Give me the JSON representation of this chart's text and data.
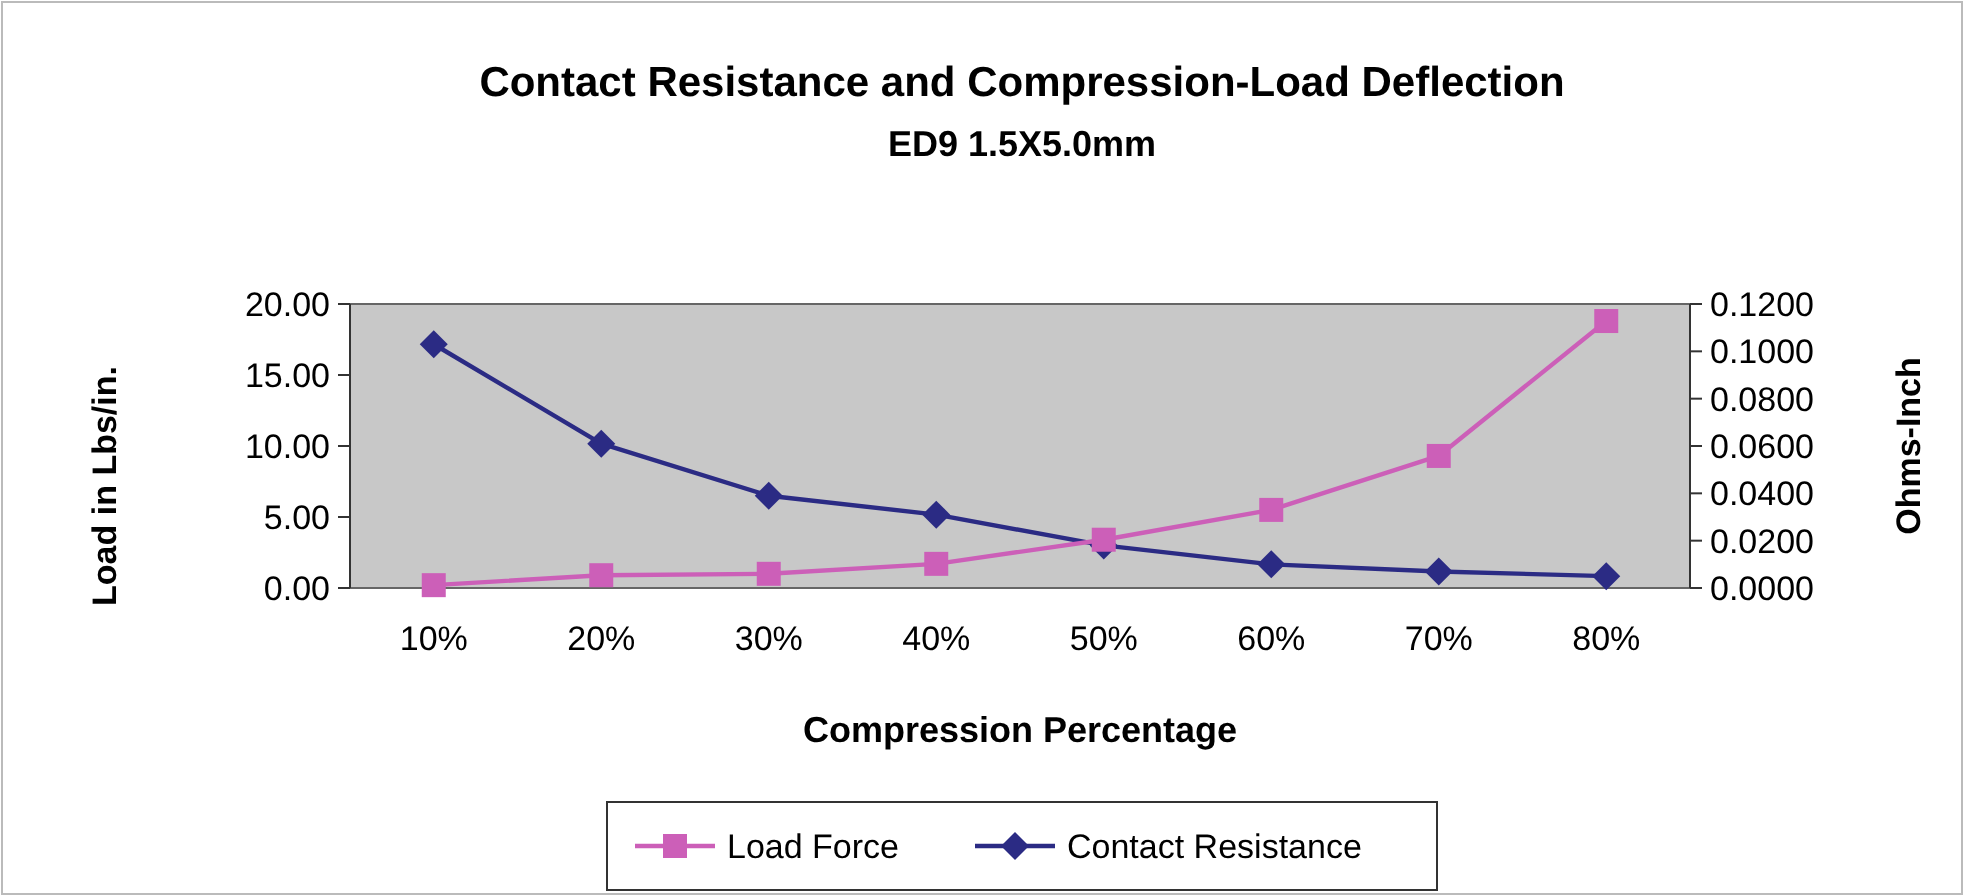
{
  "chart_data": {
    "type": "line",
    "title": "Contact Resistance and Compression-Load Deflection",
    "subtitle": "ED9 1.5X5.0mm",
    "xlabel": "Compression Percentage",
    "ylabel": "Load in Lbs/in.",
    "y2label": "Ohms-Inch",
    "categories": [
      "10%",
      "20%",
      "30%",
      "40%",
      "50%",
      "60%",
      "70%",
      "80%"
    ],
    "series": [
      {
        "name": "Load Force",
        "color": "#cc5fb8",
        "marker": "square",
        "values": [
          0.2,
          0.9,
          1.0,
          1.7,
          3.4,
          5.5,
          9.3,
          18.8
        ]
      },
      {
        "name": "Contact Resistance",
        "color": "#2b2b84",
        "marker": "diamond",
        "axis": "y2",
        "values": [
          0.103,
          0.061,
          0.039,
          0.031,
          0.018,
          0.01,
          0.007,
          0.005
        ]
      }
    ],
    "ylim": [
      0,
      20
    ],
    "yticks": [
      {
        "value": 0,
        "label": "0.00"
      },
      {
        "value": 5,
        "label": "5.00"
      },
      {
        "value": 10,
        "label": "10.00"
      },
      {
        "value": 15,
        "label": "15.00"
      },
      {
        "value": 20,
        "label": "20.00"
      }
    ],
    "y2lim": [
      0,
      0.12
    ],
    "y2ticks": [
      {
        "value": 0,
        "label": "0.0000"
      },
      {
        "value": 0.02,
        "label": "0.0200"
      },
      {
        "value": 0.04,
        "label": "0.0400"
      },
      {
        "value": 0.06,
        "label": "0.0600"
      },
      {
        "value": 0.08,
        "label": "0.0800"
      },
      {
        "value": 0.1,
        "label": "0.1000"
      },
      {
        "value": 0.12,
        "label": "0.1200"
      }
    ],
    "grid": false,
    "legend": "bottom"
  }
}
